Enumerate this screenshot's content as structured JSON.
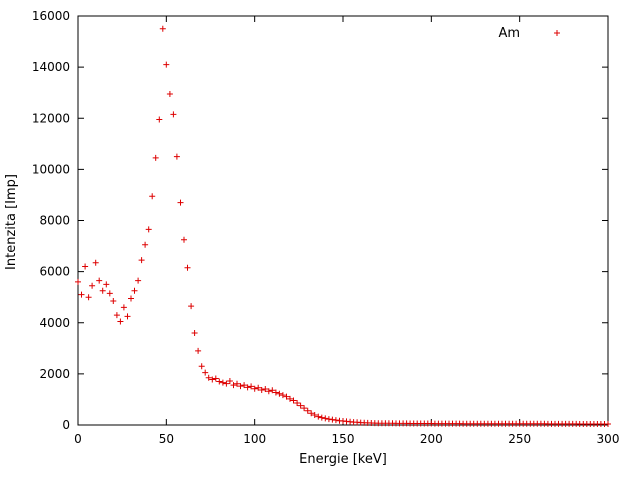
{
  "chart_data": {
    "type": "scatter",
    "title": "",
    "xlabel": "Energie [keV]",
    "ylabel": "Intenzita [Imp]",
    "xlim": [
      0,
      300
    ],
    "ylim": [
      0,
      16000
    ],
    "xtick_step": 50,
    "ytick_step": 2000,
    "grid": false,
    "legend": {
      "label": "Am",
      "position": "top-right"
    },
    "marker": {
      "shape": "plus",
      "color": "#dd0000",
      "size": 3
    },
    "x": [
      0,
      2,
      4,
      6,
      8,
      10,
      12,
      14,
      16,
      18,
      20,
      22,
      24,
      26,
      28,
      30,
      32,
      34,
      36,
      38,
      40,
      42,
      44,
      46,
      48,
      50,
      52,
      54,
      56,
      58,
      60,
      62,
      64,
      66,
      68,
      70,
      72,
      74,
      76,
      78,
      80,
      82,
      84,
      86,
      88,
      90,
      92,
      94,
      96,
      98,
      100,
      102,
      104,
      106,
      108,
      110,
      112,
      114,
      116,
      118,
      120,
      122,
      124,
      126,
      128,
      130,
      132,
      134,
      136,
      138,
      140,
      142,
      144,
      146,
      148,
      150,
      152,
      154,
      156,
      158,
      160,
      162,
      164,
      166,
      168,
      170,
      172,
      174,
      176,
      178,
      180,
      182,
      184,
      186,
      188,
      190,
      192,
      194,
      196,
      198,
      200,
      202,
      204,
      206,
      208,
      210,
      212,
      214,
      216,
      218,
      220,
      222,
      224,
      226,
      228,
      230,
      232,
      234,
      236,
      238,
      240,
      242,
      244,
      246,
      248,
      250,
      252,
      254,
      256,
      258,
      260,
      262,
      264,
      266,
      268,
      270,
      272,
      274,
      276,
      278,
      280,
      282,
      284,
      286,
      288,
      290,
      292,
      294,
      296,
      298,
      300
    ],
    "y": [
      5600,
      5100,
      6200,
      5000,
      5450,
      6350,
      5650,
      5250,
      5500,
      5150,
      4850,
      4300,
      4050,
      4600,
      4250,
      4950,
      5250,
      5650,
      6450,
      7050,
      7650,
      8950,
      10450,
      11950,
      15500,
      14100,
      12950,
      12150,
      10500,
      8700,
      7250,
      6150,
      4650,
      3600,
      2900,
      2300,
      2050,
      1850,
      1780,
      1820,
      1700,
      1660,
      1620,
      1720,
      1560,
      1610,
      1520,
      1560,
      1470,
      1510,
      1420,
      1460,
      1370,
      1410,
      1320,
      1360,
      1270,
      1220,
      1170,
      1110,
      1020,
      960,
      860,
      760,
      660,
      560,
      460,
      390,
      330,
      290,
      260,
      230,
      210,
      190,
      170,
      155,
      140,
      125,
      115,
      105,
      95,
      88,
      82,
      78,
      74,
      72,
      70,
      68,
      66,
      65,
      64,
      63,
      62,
      61,
      60,
      60,
      59,
      58,
      58,
      57,
      57,
      56,
      56,
      55,
      55,
      54,
      54,
      53,
      53,
      52,
      52,
      52,
      51,
      51,
      51,
      50,
      50,
      50,
      49,
      49,
      49,
      48,
      48,
      48,
      47,
      47,
      47,
      46,
      46,
      46,
      45,
      45,
      45,
      44,
      44,
      44,
      43,
      43,
      43,
      42,
      42,
      42,
      41,
      41,
      41,
      40,
      40,
      40,
      39,
      39,
      39
    ]
  }
}
